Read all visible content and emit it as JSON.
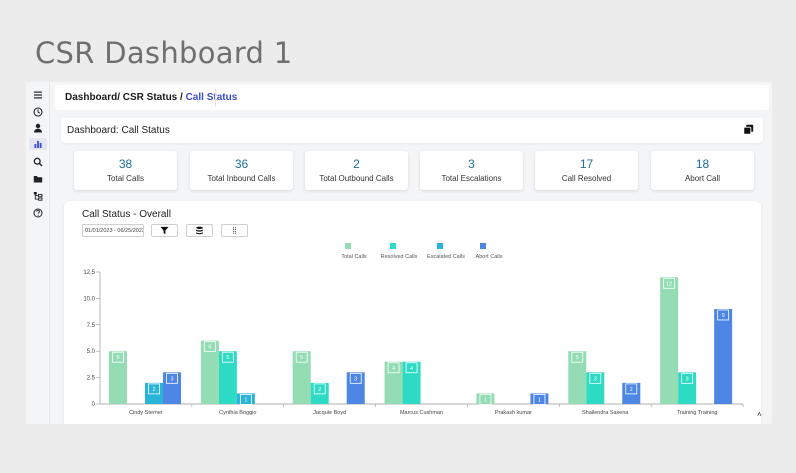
{
  "page_title": "CSR Dashboard 1",
  "breadcrumb": {
    "parent": "Dashboard/ CSR Status / ",
    "current": "Call Status"
  },
  "header": {
    "title": "Dashboard: Call Status"
  },
  "stats": [
    {
      "value": "38",
      "label": "Total Calls"
    },
    {
      "value": "36",
      "label": "Total Inbound Calls"
    },
    {
      "value": "2",
      "label": "Total Outbound Calls"
    },
    {
      "value": "3",
      "label": "Total Escalations"
    },
    {
      "value": "17",
      "label": "Call Resolved"
    },
    {
      "value": "18",
      "label": "Abort Call"
    }
  ],
  "chart_card": {
    "title": "Call Status - Overall",
    "date_range": "01/01/2023 - 06/25/2023"
  },
  "colors": {
    "total": "#93dcb4",
    "resolved": "#2ddac4",
    "escalated": "#29b4d8",
    "abort": "#4e86e6",
    "accent": "#3b4cca",
    "stat_value": "#1d6f9a"
  },
  "sidebar_icons": [
    "menu-icon",
    "clock-icon",
    "user-icon",
    "bar-chart-icon",
    "search-icon",
    "folder-icon",
    "hierarchy-icon",
    "help-icon"
  ],
  "chart_data": {
    "type": "bar",
    "categories": [
      "Cindy Sterner",
      "Cynthia Boggio",
      "Jacquie Boyd",
      "Marcus Cushman",
      "Prakash kumar",
      "Shailendra Saxena",
      "Training Training"
    ],
    "series": [
      {
        "name": "Total Calls",
        "values": [
          5,
          6,
          5,
          4,
          1,
          5,
          12
        ]
      },
      {
        "name": "Resolved Calls",
        "values": [
          null,
          5,
          2,
          4,
          null,
          3,
          3
        ]
      },
      {
        "name": "Escalated Calls",
        "values": [
          2,
          1,
          null,
          null,
          null,
          null,
          null
        ]
      },
      {
        "name": "Abort Calls",
        "values": [
          3,
          null,
          3,
          null,
          1,
          2,
          9
        ]
      }
    ],
    "yticks": [
      "0",
      "2.5",
      "5.0",
      "7.5",
      "10.0",
      "12.5"
    ],
    "ylim": [
      0,
      12.5
    ],
    "legend": "top-center",
    "grid": false
  }
}
